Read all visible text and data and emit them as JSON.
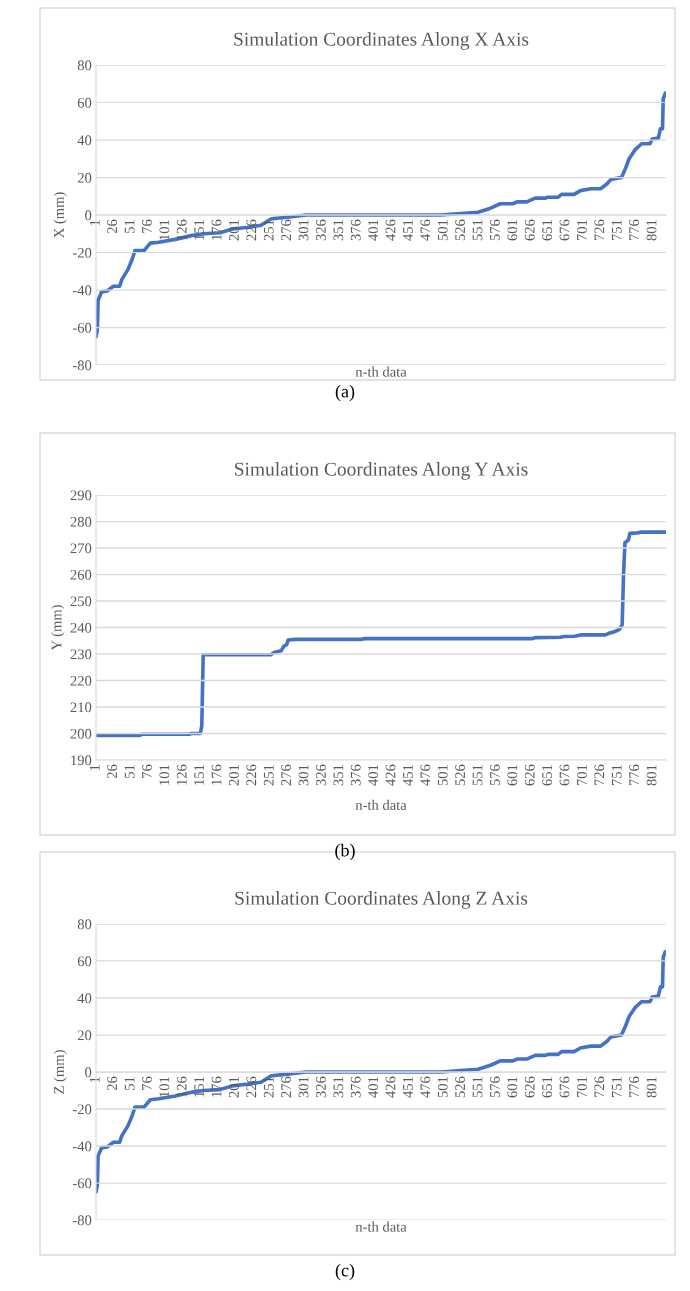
{
  "chart_data": [
    {
      "type": "line",
      "title": "Simulation Coordinates Along X Axis",
      "xlabel": "n-th data",
      "ylabel": "X (mm)",
      "annotations": [
        "(a)"
      ],
      "series": [
        {
          "color": "#4472c4",
          "x": [
            1,
            3,
            4,
            9,
            17,
            26,
            35,
            38,
            47,
            53,
            57,
            70,
            79,
            91,
            115,
            138,
            156,
            179,
            197,
            220,
            238,
            253,
            273,
            303,
            497,
            520,
            550,
            567,
            582,
            600,
            606,
            620,
            632,
            647,
            650,
            665,
            670,
            688,
            697,
            712,
            726,
            735,
            741,
            756,
            762,
            767,
            776,
            785,
            797,
            800,
            809,
            812,
            815,
            816,
            819
          ],
          "values": [
            -65,
            -61,
            -45.5,
            -41,
            -40.5,
            -38,
            -38,
            -34.5,
            -29,
            -23.6,
            -19,
            -19,
            -15,
            -14.5,
            -13,
            -11,
            -10,
            -9.5,
            -7.5,
            -6.5,
            -5.5,
            -2,
            -1.3,
            0,
            0,
            0.7,
            1.5,
            3.5,
            6,
            6,
            7,
            7,
            9,
            9,
            9.5,
            9.5,
            11,
            11,
            13,
            14,
            14,
            16.5,
            19,
            20,
            25,
            30,
            35,
            38,
            38,
            40.5,
            41,
            46,
            46,
            62,
            65
          ]
        }
      ],
      "xlim": [
        1,
        820
      ],
      "xticks": [
        1,
        26,
        51,
        76,
        101,
        126,
        151,
        176,
        201,
        226,
        251,
        276,
        301,
        326,
        351,
        376,
        401,
        426,
        451,
        476,
        501,
        526,
        551,
        576,
        601,
        626,
        651,
        676,
        701,
        726,
        751,
        776,
        801
      ],
      "ylim": [
        -80,
        80
      ],
      "yticks": [
        -80,
        -60,
        -40,
        -20,
        0,
        20,
        40,
        60,
        80
      ],
      "grid": "y",
      "legend": false,
      "marker": "none",
      "line_style": "solid"
    },
    {
      "type": "line",
      "title": "Simulation Coordinates Along Y Axis",
      "xlabel": "n-th data",
      "ylabel": "Y (mm)",
      "annotations": [
        "(b)"
      ],
      "series": [
        {
          "color": "#4472c4",
          "x": [
            1,
            64,
            67,
            135,
            138,
            151,
            153,
            155,
            252,
            258,
            267,
            271,
            275,
            277,
            287,
            381,
            387,
            627,
            633,
            668,
            674,
            689,
            697,
            733,
            738,
            747,
            753,
            757,
            759,
            761,
            766,
            768,
            779,
            785,
            819
          ],
          "values": [
            199.3,
            199.3,
            199.7,
            199.7,
            200,
            200,
            203,
            229.7,
            229.7,
            230.7,
            231.2,
            233,
            233.5,
            235.3,
            235.5,
            235.5,
            235.8,
            235.8,
            236.2,
            236.3,
            236.6,
            236.7,
            237.2,
            237.2,
            237.8,
            238.5,
            239.3,
            241,
            260,
            272,
            273,
            275.5,
            275.7,
            276,
            276
          ]
        }
      ],
      "xlim": [
        1,
        820
      ],
      "xticks": [
        1,
        26,
        51,
        76,
        101,
        126,
        151,
        176,
        201,
        226,
        251,
        276,
        301,
        326,
        351,
        376,
        401,
        426,
        451,
        476,
        501,
        526,
        551,
        576,
        601,
        626,
        651,
        676,
        701,
        726,
        751,
        776,
        801
      ],
      "ylim": [
        190,
        290
      ],
      "yticks": [
        190,
        200,
        210,
        220,
        230,
        240,
        250,
        260,
        270,
        280,
        290
      ],
      "grid": "y",
      "legend": false,
      "marker": "none",
      "line_style": "solid"
    },
    {
      "type": "line",
      "title": "Simulation Coordinates Along Z Axis",
      "xlabel": "n-th data",
      "ylabel": "Z (mm)",
      "annotations": [
        "(c)"
      ],
      "series": [
        {
          "color": "#4472c4",
          "x": [
            1,
            3,
            4,
            9,
            17,
            26,
            35,
            38,
            47,
            53,
            57,
            70,
            79,
            91,
            115,
            138,
            156,
            179,
            197,
            220,
            238,
            253,
            273,
            303,
            497,
            520,
            550,
            567,
            582,
            600,
            606,
            620,
            632,
            647,
            650,
            665,
            670,
            688,
            697,
            712,
            726,
            735,
            741,
            756,
            762,
            767,
            776,
            785,
            797,
            800,
            809,
            812,
            815,
            816,
            819
          ],
          "values": [
            -65,
            -61,
            -45.5,
            -41,
            -40.5,
            -38,
            -38,
            -34.5,
            -29,
            -23.6,
            -19,
            -19,
            -15,
            -14.5,
            -13,
            -11,
            -10,
            -9.5,
            -7.5,
            -6.5,
            -5.5,
            -2,
            -1.3,
            0,
            0,
            0.7,
            1.5,
            3.5,
            6,
            6,
            7,
            7,
            9,
            9,
            9.5,
            9.5,
            11,
            11,
            13,
            14,
            14,
            16.5,
            19,
            20,
            25,
            30,
            35,
            38,
            38,
            40.5,
            41,
            46,
            46,
            62,
            65
          ]
        }
      ],
      "xlim": [
        1,
        820
      ],
      "xticks": [
        1,
        26,
        51,
        76,
        101,
        126,
        151,
        176,
        201,
        226,
        251,
        276,
        301,
        326,
        351,
        376,
        401,
        426,
        451,
        476,
        501,
        526,
        551,
        576,
        601,
        626,
        651,
        676,
        701,
        726,
        751,
        776,
        801
      ],
      "ylim": [
        -80,
        80
      ],
      "yticks": [
        -80,
        -60,
        -40,
        -20,
        0,
        20,
        40,
        60,
        80
      ],
      "grid": "y",
      "legend": false,
      "marker": "none",
      "line_style": "solid"
    }
  ]
}
